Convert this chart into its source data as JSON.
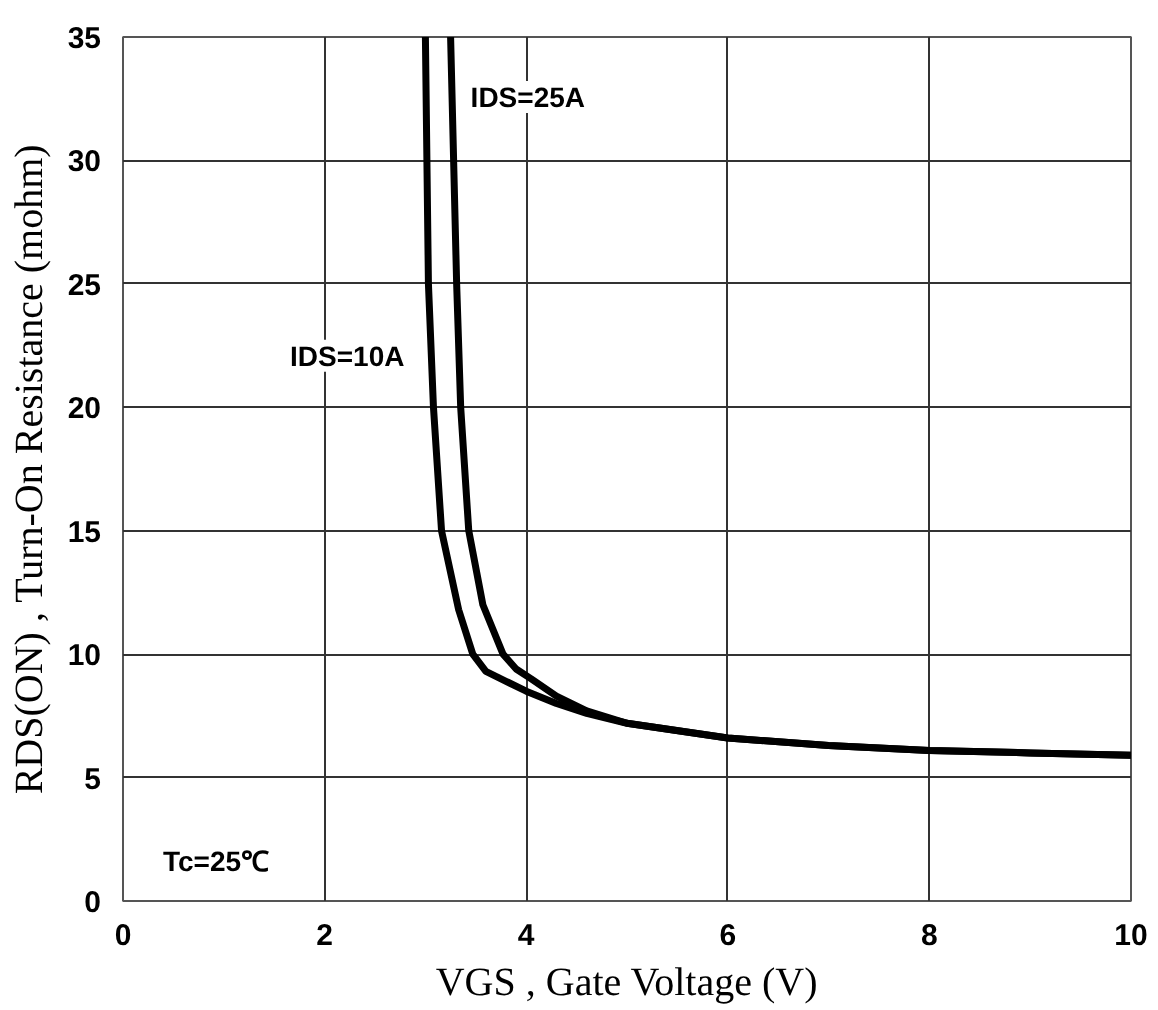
{
  "chart_data": {
    "type": "line",
    "xlabel": "VGS , Gate Voltage (V)",
    "ylabel": "RDS(ON) , Turn-On Resistance (mohm)",
    "xlim": [
      0,
      10
    ],
    "ylim": [
      0,
      35
    ],
    "xticks": [
      0,
      2,
      4,
      6,
      8,
      10
    ],
    "yticks": [
      0,
      5,
      10,
      15,
      20,
      25,
      30,
      35
    ],
    "grid": true,
    "marker": "none",
    "line_style": "solid",
    "series": [
      {
        "name": "IDS=10A",
        "color": "#000000",
        "x": [
          3.0,
          3.03,
          3.08,
          3.16,
          3.33,
          3.47,
          3.6,
          3.8,
          4.0,
          4.3,
          4.6,
          5,
          6,
          7,
          8,
          9,
          10
        ],
        "values": [
          35,
          25,
          20,
          15,
          11.8,
          10,
          9.3,
          8.9,
          8.5,
          8.0,
          7.6,
          7.2,
          6.6,
          6.3,
          6.1,
          6.0,
          5.9
        ]
      },
      {
        "name": "IDS=25A",
        "color": "#000000",
        "x": [
          3.25,
          3.31,
          3.35,
          3.43,
          3.57,
          3.77,
          3.9,
          4.05,
          4.3,
          4.6,
          5,
          6,
          7,
          8,
          9,
          10
        ],
        "values": [
          35,
          25,
          20,
          15,
          12,
          10,
          9.4,
          9.0,
          8.3,
          7.7,
          7.2,
          6.6,
          6.3,
          6.1,
          6.0,
          5.9
        ]
      }
    ],
    "annotations": [
      "Tc=25℃"
    ]
  }
}
